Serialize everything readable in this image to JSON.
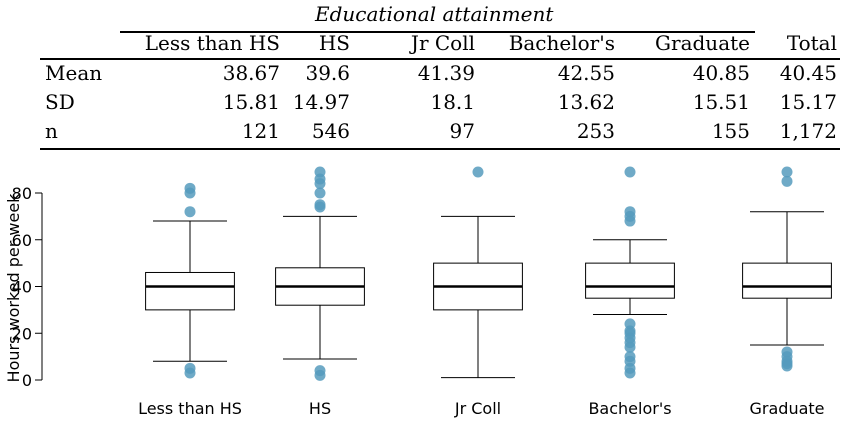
{
  "table": {
    "caption": "Educational attainment",
    "columns": [
      "Less than HS",
      "HS",
      "Jr Coll",
      "Bachelor's",
      "Graduate",
      "Total"
    ],
    "rows": [
      {
        "label": "Mean",
        "values": [
          "38.67",
          "39.6",
          "41.39",
          "42.55",
          "40.85",
          "40.45"
        ]
      },
      {
        "label": "SD",
        "values": [
          "15.81",
          "14.97",
          "18.1",
          "13.62",
          "15.51",
          "15.17"
        ]
      },
      {
        "label": "n",
        "values": [
          "121",
          "546",
          "97",
          "253",
          "155",
          "1,172"
        ]
      }
    ]
  },
  "chart_data": {
    "type": "box",
    "title": "",
    "xlabel": "",
    "ylabel": "Hours worked per week",
    "ylim": [
      0,
      90
    ],
    "yticks": [
      0,
      20,
      40,
      60,
      80
    ],
    "grid": false,
    "categories": [
      "Less than HS",
      "HS",
      "Jr Coll",
      "Bachelor's",
      "Graduate"
    ],
    "box_color": "#000000",
    "outlier_color": "#569BBD",
    "boxes": [
      {
        "category": "Less than HS",
        "whisker_low": 8,
        "q1": 30,
        "median": 40,
        "q3": 46,
        "whisker_high": 68,
        "outliers": [
          3,
          5,
          72,
          80,
          82
        ]
      },
      {
        "category": "HS",
        "whisker_low": 9,
        "q1": 32,
        "median": 40,
        "q3": 48,
        "whisker_high": 70,
        "outliers": [
          2,
          4,
          74,
          75,
          80,
          84,
          86,
          89
        ]
      },
      {
        "category": "Jr Coll",
        "whisker_low": 1,
        "q1": 30,
        "median": 40,
        "q3": 50,
        "whisker_high": 70,
        "outliers": [
          89
        ]
      },
      {
        "category": "Bachelor's",
        "whisker_low": 28,
        "q1": 35,
        "median": 40,
        "q3": 50,
        "whisker_high": 60,
        "outliers": [
          3,
          5,
          8,
          10,
          14,
          16,
          18,
          20,
          21,
          24,
          68,
          70,
          72,
          89
        ]
      },
      {
        "category": "Graduate",
        "whisker_low": 15,
        "q1": 35,
        "median": 40,
        "q3": 50,
        "whisker_high": 72,
        "outliers": [
          6,
          7,
          8,
          10,
          12,
          85,
          89
        ]
      }
    ]
  }
}
